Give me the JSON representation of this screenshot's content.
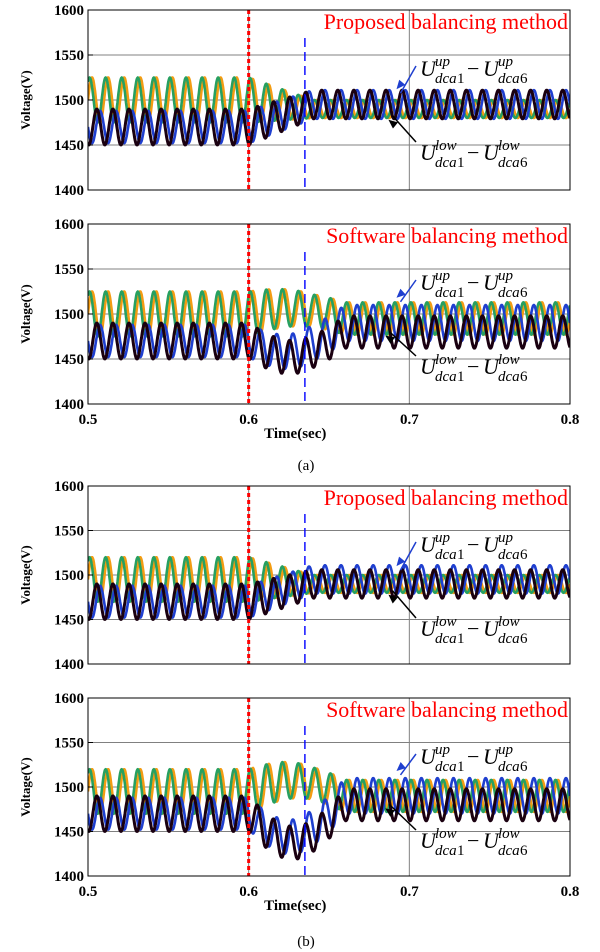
{
  "chart_data": [
    {
      "type": "line",
      "id": "a1",
      "title": "Proposed balancing method",
      "ylabel": "Voltage(V)",
      "xlabel": "",
      "xlim": [
        0.5,
        0.8
      ],
      "ylim": [
        1400,
        1600
      ],
      "xticks": [
        "0.5",
        "0.6",
        "0.7",
        "0.8"
      ],
      "yticks": [
        "1400",
        "1450",
        "1500",
        "1550",
        "1600"
      ],
      "grid": true,
      "event_times": [
        0.6,
        0.635
      ],
      "annotations": [
        {
          "sup": "up",
          "v1": "U",
          "s1": "dca1",
          "s2": "dca6",
          "target": [
            0.692,
            1512
          ]
        },
        {
          "sup": "low",
          "v1": "U",
          "s1": "dca1",
          "s2": "dca6",
          "target": [
            0.687,
            1478
          ]
        }
      ],
      "series": [
        {
          "color": "#f39c12",
          "before": {
            "base": 1500,
            "amp": 25
          },
          "after": {
            "base": 1490,
            "amp": 10
          },
          "phase": 0.0
        },
        {
          "color": "#27a060",
          "before": {
            "base": 1500,
            "amp": 25
          },
          "after": {
            "base": 1490,
            "amp": 10
          },
          "phase": 0.15
        },
        {
          "color": "#1f3fcf",
          "before": {
            "base": 1470,
            "amp": 18
          },
          "after": {
            "base": 1495,
            "amp": 16
          },
          "phase": 0.5
        },
        {
          "color": "#1a0010",
          "before": {
            "base": 1470,
            "amp": 20
          },
          "after": {
            "base": 1495,
            "amp": 16
          },
          "phase": 0.7
        }
      ]
    },
    {
      "type": "line",
      "id": "a2",
      "title": "Software balancing method",
      "ylabel": "Voltage(V)",
      "xlabel": "Time(sec)",
      "xlim": [
        0.5,
        0.8
      ],
      "ylim": [
        1400,
        1600
      ],
      "xticks": [
        "0.5",
        "0.6",
        "0.7",
        "0.8"
      ],
      "yticks": [
        "1400",
        "1450",
        "1500",
        "1550",
        "1600"
      ],
      "grid": true,
      "event_times": [
        0.6,
        0.635
      ],
      "annotations": [
        {
          "sup": "up",
          "v1": "U",
          "s1": "dca1",
          "s2": "dca6",
          "target": [
            0.692,
            1518
          ]
        },
        {
          "sup": "low",
          "v1": "U",
          "s1": "dca1",
          "s2": "dca6",
          "target": [
            0.685,
            1476
          ]
        }
      ],
      "series": [
        {
          "color": "#f39c12",
          "before": {
            "base": 1500,
            "amp": 25
          },
          "after": {
            "base": 1495,
            "amp": 18
          },
          "phase": 0.0
        },
        {
          "color": "#27a060",
          "before": {
            "base": 1500,
            "amp": 25
          },
          "after": {
            "base": 1495,
            "amp": 18
          },
          "phase": 0.15
        },
        {
          "color": "#1f3fcf",
          "before": {
            "base": 1470,
            "amp": 18
          },
          "after": {
            "base": 1490,
            "amp": 20
          },
          "phase": 0.5
        },
        {
          "color": "#1a0010",
          "before": {
            "base": 1470,
            "amp": 20
          },
          "after": {
            "base": 1480,
            "amp": 18
          },
          "phase": 0.7
        }
      ]
    },
    {
      "type": "line",
      "id": "b1",
      "title": "Proposed balancing method",
      "ylabel": "Voltage(V)",
      "xlabel": "",
      "xlim": [
        0.5,
        0.8
      ],
      "ylim": [
        1400,
        1600
      ],
      "xticks": [
        "0.5",
        "0.6",
        "0.7",
        "0.8"
      ],
      "yticks": [
        "1400",
        "1450",
        "1500",
        "1550",
        "1600"
      ],
      "grid": true,
      "event_times": [
        0.6,
        0.635
      ],
      "annotations": [
        {
          "sup": "up",
          "v1": "U",
          "s1": "dca1",
          "s2": "dca6",
          "target": [
            0.692,
            1510
          ]
        },
        {
          "sup": "low",
          "v1": "U",
          "s1": "dca1",
          "s2": "dca6",
          "target": [
            0.687,
            1478
          ]
        }
      ],
      "series": [
        {
          "color": "#f39c12",
          "before": {
            "base": 1495,
            "amp": 25
          },
          "after": {
            "base": 1490,
            "amp": 10
          },
          "phase": 0.0
        },
        {
          "color": "#27a060",
          "before": {
            "base": 1495,
            "amp": 25
          },
          "after": {
            "base": 1490,
            "amp": 10
          },
          "phase": 0.15
        },
        {
          "color": "#1f3fcf",
          "before": {
            "base": 1470,
            "amp": 18
          },
          "after": {
            "base": 1495,
            "amp": 16
          },
          "phase": 0.5
        },
        {
          "color": "#1a0010",
          "before": {
            "base": 1470,
            "amp": 20
          },
          "after": {
            "base": 1490,
            "amp": 16
          },
          "phase": 0.7
        }
      ]
    },
    {
      "type": "line",
      "id": "b2",
      "title": "Software balancing method",
      "ylabel": "Voltage(V)",
      "xlabel": "Time(sec)",
      "xlim": [
        0.5,
        0.8
      ],
      "ylim": [
        1400,
        1600
      ],
      "xticks": [
        "0.5",
        "0.6",
        "0.7",
        "0.8"
      ],
      "yticks": [
        "1400",
        "1450",
        "1500",
        "1550",
        "1600"
      ],
      "grid": true,
      "event_times": [
        0.6,
        0.635
      ],
      "annotations": [
        {
          "sup": "up",
          "v1": "U",
          "s1": "dca1",
          "s2": "dca6",
          "target": [
            0.692,
            1518
          ]
        },
        {
          "sup": "low",
          "v1": "U",
          "s1": "dca1",
          "s2": "dca6",
          "target": [
            0.685,
            1476
          ]
        }
      ],
      "series": [
        {
          "color": "#f39c12",
          "before": {
            "base": 1495,
            "amp": 25
          },
          "after": {
            "base": 1490,
            "amp": 18
          },
          "phase": 0.0
        },
        {
          "color": "#27a060",
          "before": {
            "base": 1495,
            "amp": 25
          },
          "after": {
            "base": 1490,
            "amp": 18
          },
          "phase": 0.15
        },
        {
          "color": "#1f3fcf",
          "before": {
            "base": 1470,
            "amp": 18
          },
          "after": {
            "base": 1490,
            "amp": 20
          },
          "phase": 0.5
        },
        {
          "color": "#1a0010",
          "before": {
            "base": 1470,
            "amp": 20
          },
          "after": {
            "base": 1480,
            "amp": 18
          },
          "phase": 0.7
        }
      ]
    }
  ],
  "captions": {
    "a": "(a)",
    "b": "(b)"
  },
  "colors": {
    "event_line": "#ff0000",
    "marker_line": "#0000ff",
    "grid": "#808080",
    "title": "#ff0000",
    "arrow_up": "#1f3fcf",
    "arrow_low": "#000000"
  }
}
